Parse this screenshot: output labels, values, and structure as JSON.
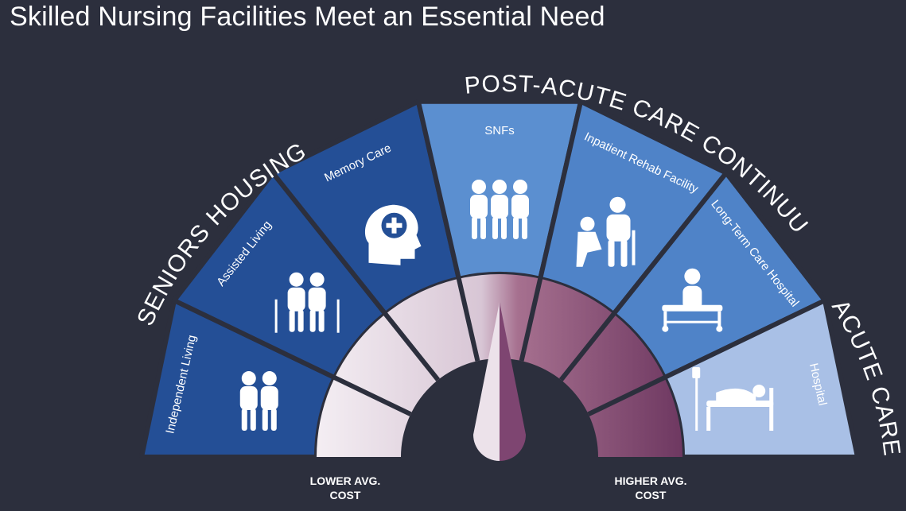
{
  "title": "Skilled Nursing Facilities Meet an Essential Need",
  "groups": {
    "seniors_housing": "SENIORS HOUSING",
    "post_acute": "POST-ACUTE CARE CONTINUUM",
    "acute_care": "ACUTE CARE"
  },
  "segments": [
    {
      "label": "Independent Living",
      "color": "#244f96",
      "icon": "elderly-couple-icon"
    },
    {
      "label": "Assisted Living",
      "color": "#244f96",
      "icon": "elderly-with-canes-icon"
    },
    {
      "label": "Memory Care",
      "color": "#244f96",
      "icon": "brain-head-icon"
    },
    {
      "label": "SNFs",
      "color": "#5b8fd0",
      "icon": "nurse-staff-icon"
    },
    {
      "label": "Inpatient Rehab Facility",
      "color": "#4f83c8",
      "icon": "rehab-therapy-icon"
    },
    {
      "label": "Long-Term Care Hospital",
      "color": "#4f83c8",
      "icon": "patient-bed-icon"
    },
    {
      "label": "Hospital",
      "color": "#a9c0e6",
      "icon": "hospital-bed-icon"
    }
  ],
  "cost": {
    "lower_line1": "LOWER AVG.",
    "lower_line2": "COST",
    "higher_line1": "HIGHER AVG.",
    "higher_line2": "COST"
  }
}
